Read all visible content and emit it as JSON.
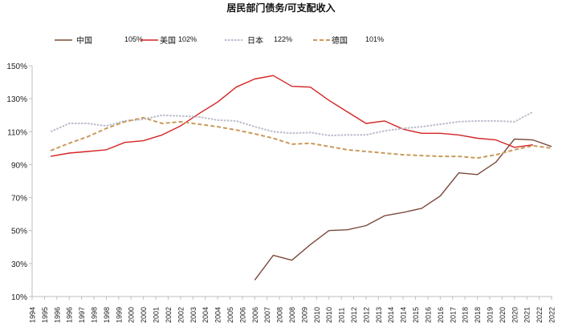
{
  "chart_data": {
    "type": "line",
    "title": "居民部门债务/可支配收入",
    "xlabel": "",
    "ylabel": "",
    "ylim": [
      10,
      150
    ],
    "yticks": [
      "10%",
      "30%",
      "50%",
      "70%",
      "90%",
      "110%",
      "130%",
      "150%"
    ],
    "ytick_values": [
      10,
      30,
      50,
      70,
      90,
      110,
      130,
      150
    ],
    "xlim": [
      1994,
      2022
    ],
    "xtick_labels": [
      "1994",
      "1995",
      "1996",
      "1996",
      "1997",
      "1998",
      "1998",
      "1999",
      "2000",
      "2000",
      "2001",
      "2002",
      "2002",
      "2003",
      "2004",
      "2004",
      "2005",
      "2006",
      "2006",
      "2007",
      "2008",
      "2008",
      "2009",
      "2010",
      "2010",
      "2011",
      "2012",
      "2012",
      "2013",
      "2014",
      "2014",
      "2015",
      "2016",
      "2016",
      "2017",
      "2018",
      "2018",
      "2019",
      "2020",
      "2020",
      "2021",
      "2022",
      "2022"
    ],
    "grid": false,
    "legend_placement": "top",
    "series": [
      {
        "name": "中国",
        "legend_value": "105%",
        "color": "#7b4b3c",
        "style": "solid",
        "x": [
          2006,
          2007,
          2008,
          2009,
          2010,
          2011,
          2012,
          2013,
          2014,
          2015,
          2016,
          2017,
          2018,
          2019,
          2020,
          2021,
          2022
        ],
        "values": [
          20,
          35,
          32,
          41.5,
          50,
          50.5,
          53,
          59,
          61,
          63.5,
          71,
          85,
          84,
          91.5,
          105.5,
          105,
          101
        ]
      },
      {
        "name": "美国",
        "legend_value": "102%",
        "color": "#d42424",
        "style": "solid",
        "x": [
          1995,
          1996,
          1997,
          1998,
          1999,
          2000,
          2001,
          2002,
          2003,
          2004,
          2005,
          2006,
          2007,
          2008,
          2009,
          2010,
          2011,
          2012,
          2013,
          2014,
          2015,
          2016,
          2017,
          2018,
          2019,
          2020,
          2021
        ],
        "values": [
          95,
          97,
          98,
          99,
          103.5,
          104.5,
          108,
          113.5,
          121,
          128,
          137,
          142,
          144,
          137.5,
          137,
          129,
          122,
          115,
          116.5,
          111.5,
          109,
          109,
          108,
          106,
          105,
          100.5,
          102
        ]
      },
      {
        "name": "日本",
        "legend_value": "122%",
        "color": "#b9bdcc",
        "style": "dotted",
        "x": [
          1995,
          1996,
          1997,
          1998,
          1999,
          2000,
          2001,
          2002,
          2003,
          2004,
          2005,
          2006,
          2007,
          2008,
          2009,
          2010,
          2011,
          2012,
          2013,
          2014,
          2015,
          2016,
          2017,
          2018,
          2019,
          2020,
          2021
        ],
        "values": [
          110,
          115,
          115,
          113.5,
          116.5,
          117.5,
          120,
          119.5,
          119,
          117,
          116.5,
          113,
          110,
          109,
          109.5,
          107.7,
          108,
          108,
          110.5,
          112,
          113,
          114.5,
          116,
          116.5,
          116.5,
          116,
          122
        ]
      },
      {
        "name": "德国",
        "legend_value": "101%",
        "color": "#c99a5b",
        "style": "dashed",
        "x": [
          1995,
          1996,
          1997,
          1998,
          1999,
          2000,
          2001,
          2002,
          2003,
          2004,
          2005,
          2006,
          2007,
          2008,
          2009,
          2010,
          2011,
          2012,
          2013,
          2014,
          2015,
          2016,
          2017,
          2018,
          2019,
          2020,
          2021,
          2022
        ],
        "values": [
          98.5,
          103,
          107,
          112,
          116,
          118.5,
          115,
          116,
          114.5,
          113,
          111,
          108.7,
          106,
          102.4,
          103,
          101,
          99,
          98,
          97,
          96,
          95.5,
          95,
          95,
          94,
          96,
          99,
          101.5,
          100
        ]
      }
    ]
  }
}
